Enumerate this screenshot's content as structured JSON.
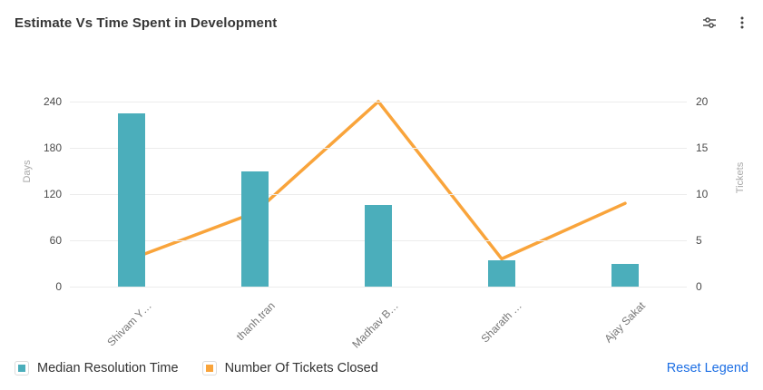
{
  "header": {
    "title": "Estimate Vs Time Spent in Development",
    "icons": [
      "sliders-icon",
      "kebab-menu-icon"
    ]
  },
  "chart_data": {
    "type": "bar",
    "subtype": "combo-bar-line-dual-axis",
    "title": "Estimate Vs Time Spent in Development",
    "categories": [
      "Shivam Y…",
      "thanh.tran",
      "Madhav B…",
      "Sharath …",
      "Ajay Sakat"
    ],
    "series": [
      {
        "name": "Median Resolution Time",
        "type": "bar",
        "axis": "left",
        "color": "#4baebb",
        "values": [
          225,
          150,
          106,
          34,
          29
        ]
      },
      {
        "name": "Number Of Tickets Closed",
        "type": "line",
        "axis": "right",
        "color": "#f9a43b",
        "values": [
          3,
          8,
          20,
          3,
          9
        ]
      }
    ],
    "left_axis": {
      "label": "Days",
      "ticks": [
        0,
        60,
        120,
        180,
        240
      ],
      "max": 240
    },
    "right_axis": {
      "label": "Tickets",
      "ticks": [
        0,
        5,
        10,
        15,
        20
      ],
      "max": 20
    },
    "grid": true,
    "legend_position": "bottom"
  },
  "legend": {
    "reset_label": "Reset Legend"
  }
}
